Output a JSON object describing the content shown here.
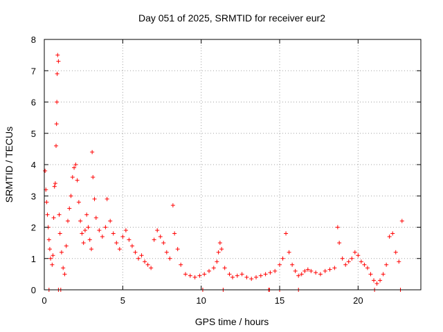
{
  "chart_data": {
    "type": "scatter",
    "title": "Day 051 of 2025, SRMTID for receiver eur2",
    "xlabel": "GPS time / hours",
    "ylabel": "SRMTID / TECUs",
    "xlim": [
      0,
      24
    ],
    "ylim": [
      0,
      8
    ],
    "xticks": [
      0,
      5,
      10,
      15,
      20
    ],
    "yticks": [
      0,
      1,
      2,
      3,
      4,
      5,
      6,
      7,
      8
    ],
    "grid": true,
    "marker": "plus",
    "series": [
      {
        "name": "SRMTID",
        "color": "#ff0000",
        "x": [
          0.05,
          0.1,
          0.15,
          0.2,
          0.25,
          0.3,
          0.35,
          0.4,
          0.5,
          0.55,
          0.6,
          0.65,
          0.7,
          0.75,
          0.78,
          0.8,
          0.82,
          0.85,
          0.9,
          0.95,
          1.0,
          1.1,
          1.2,
          1.3,
          1.4,
          1.5,
          1.6,
          1.7,
          1.8,
          1.9,
          2.0,
          2.1,
          2.2,
          2.3,
          2.4,
          2.5,
          2.6,
          2.7,
          2.8,
          2.9,
          3.0,
          3.05,
          3.1,
          3.2,
          3.3,
          3.5,
          3.7,
          3.9,
          4.0,
          4.2,
          4.4,
          4.6,
          4.8,
          5.0,
          5.2,
          5.4,
          5.6,
          5.8,
          6.0,
          6.2,
          6.4,
          6.6,
          6.8,
          7.0,
          7.2,
          7.4,
          7.6,
          7.8,
          8.0,
          8.2,
          8.3,
          8.5,
          8.7,
          9.0,
          9.3,
          9.6,
          9.9,
          10.2,
          10.5,
          10.8,
          11.0,
          11.1,
          11.2,
          11.3,
          11.5,
          11.8,
          12.0,
          12.3,
          12.6,
          12.9,
          13.2,
          13.5,
          13.8,
          14.1,
          14.4,
          14.7,
          15.0,
          15.2,
          15.4,
          15.6,
          15.8,
          16.0,
          16.2,
          16.4,
          16.6,
          16.8,
          17.0,
          17.3,
          17.6,
          17.9,
          18.2,
          18.5,
          18.7,
          18.8,
          19.0,
          19.2,
          19.4,
          19.6,
          19.8,
          20.0,
          20.2,
          20.4,
          20.6,
          20.8,
          21.0,
          21.2,
          21.4,
          21.6,
          21.8,
          22.0,
          22.2,
          22.4,
          22.6,
          22.8,
          0.3,
          0.9,
          1.05,
          10.1,
          11.4,
          14.3,
          14.35,
          15.0,
          16.2,
          21.05,
          22.7
        ],
        "y": [
          3.8,
          3.2,
          2.8,
          2.4,
          2.0,
          1.6,
          1.3,
          1.0,
          0.8,
          1.1,
          2.3,
          3.3,
          3.4,
          4.6,
          5.3,
          6.0,
          6.9,
          7.5,
          7.3,
          2.4,
          1.8,
          1.2,
          0.7,
          0.5,
          1.4,
          2.2,
          2.6,
          3.0,
          3.6,
          3.9,
          4.0,
          3.5,
          2.8,
          2.2,
          1.8,
          1.5,
          1.9,
          2.4,
          2.0,
          1.6,
          1.3,
          4.4,
          3.6,
          2.9,
          2.3,
          1.9,
          1.7,
          2.0,
          2.9,
          2.2,
          1.8,
          1.5,
          1.3,
          1.7,
          1.9,
          1.6,
          1.4,
          1.2,
          1.0,
          1.1,
          0.9,
          0.8,
          0.7,
          1.6,
          1.9,
          1.7,
          1.5,
          1.2,
          1.0,
          2.7,
          1.8,
          1.3,
          0.8,
          0.5,
          0.45,
          0.4,
          0.45,
          0.5,
          0.6,
          0.7,
          0.9,
          1.2,
          1.5,
          1.3,
          0.7,
          0.5,
          0.4,
          0.45,
          0.5,
          0.4,
          0.35,
          0.4,
          0.45,
          0.5,
          0.55,
          0.6,
          0.8,
          1.0,
          1.8,
          1.2,
          0.8,
          0.6,
          0.45,
          0.5,
          0.6,
          0.65,
          0.6,
          0.55,
          0.5,
          0.6,
          0.65,
          0.7,
          2.0,
          1.5,
          1.0,
          0.8,
          0.9,
          1.0,
          1.2,
          1.1,
          0.9,
          0.8,
          0.7,
          0.5,
          0.3,
          0.2,
          0.3,
          0.5,
          0.8,
          1.7,
          1.8,
          1.2,
          0.9,
          2.2,
          0.0,
          0.0,
          0.0,
          0.0,
          0.0,
          0.0,
          0.0,
          0.0,
          0.0,
          0.0,
          0.0
        ]
      }
    ]
  }
}
